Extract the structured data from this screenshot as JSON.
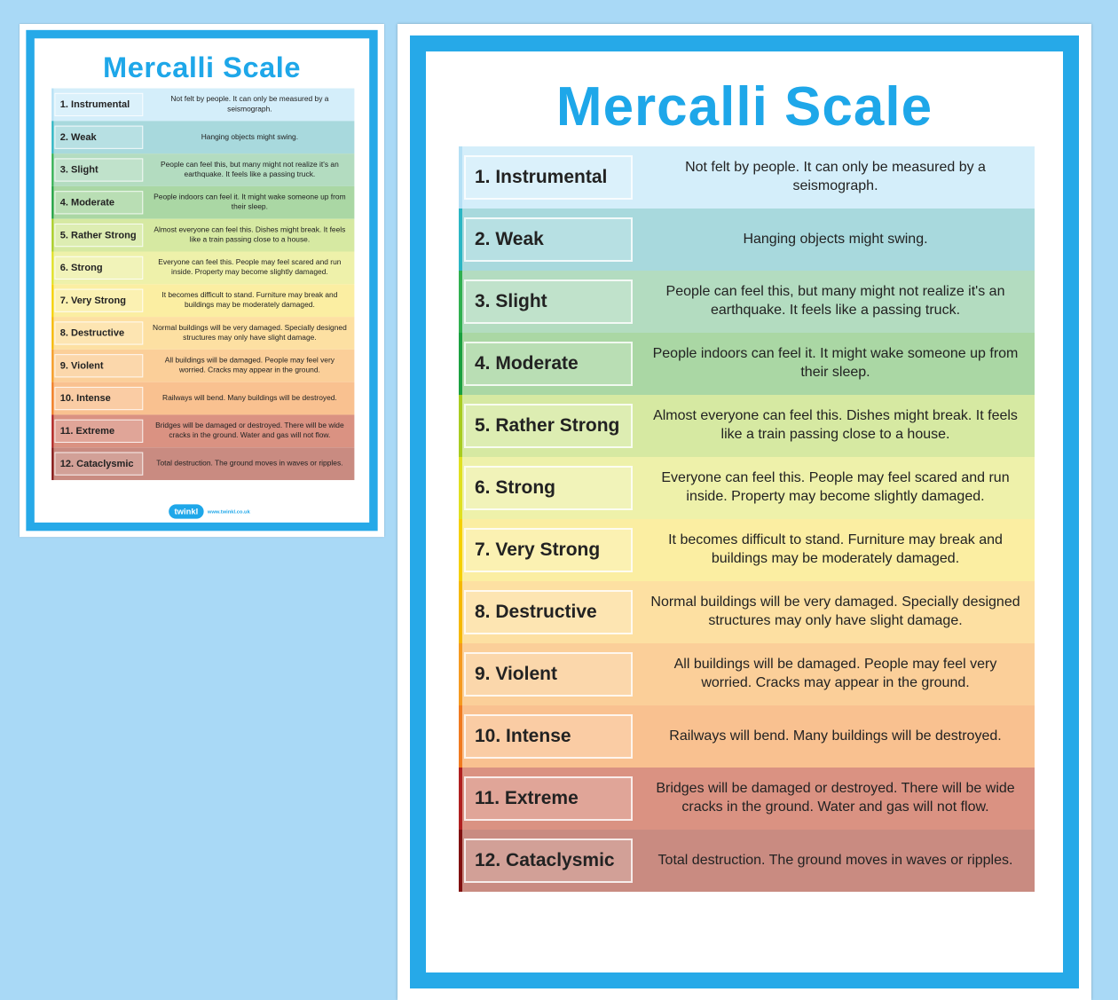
{
  "title": "Mercalli Scale",
  "logo": {
    "brand": "twinkl",
    "url": "www.twinkl.co.uk"
  },
  "rows": [
    {
      "label": "1. Instrumental",
      "desc": "Not felt by people. It can only be measured by a seismograph.",
      "color": "#d4eefa",
      "strip": "#b5e0f5"
    },
    {
      "label": "2. Weak",
      "desc": "Hanging objects might swing.",
      "color": "#a8d9dd",
      "strip": "#2bb6c4"
    },
    {
      "label": "3. Slight",
      "desc": "People can feel this, but many might not realize it's an earthquake. It feels like a passing truck.",
      "color": "#b3dcc0",
      "strip": "#30b050"
    },
    {
      "label": "4. Moderate",
      "desc": "People indoors can feel it. It might wake someone up from their sleep.",
      "color": "#aad7a4",
      "strip": "#1aa040"
    },
    {
      "label": "5. Rather Strong",
      "desc": "Almost everyone can feel this. Dishes might break. It feels like a train passing close to a house.",
      "color": "#d6e9a2",
      "strip": "#a8cc20"
    },
    {
      "label": "6. Strong",
      "desc": "Everyone can feel this. People may feel scared and run inside. Property may become slightly damaged.",
      "color": "#eef1aa",
      "strip": "#e0e020"
    },
    {
      "label": "7. Very Strong",
      "desc": "It becomes difficult to stand. Furniture may break and buildings may be moderately damaged.",
      "color": "#fbeea2",
      "strip": "#f5d000"
    },
    {
      "label": "8. Destructive",
      "desc": "Normal buildings will be very damaged. Specially designed structures may only have slight damage.",
      "color": "#fde0a2",
      "strip": "#f5b800"
    },
    {
      "label": "9. Violent",
      "desc": "All buildings will be damaged. People may feel very worried. Cracks may appear in the ground.",
      "color": "#fbcf99",
      "strip": "#f59a20"
    },
    {
      "label": "10. Intense",
      "desc": "Railways will bend. Many buildings will be destroyed.",
      "color": "#f9c190",
      "strip": "#f07a20"
    },
    {
      "label": "11. Extreme",
      "desc": "Bridges will be damaged or destroyed. There will be wide cracks in the ground. Water and gas will not flow.",
      "color": "#da9282",
      "strip": "#b02020"
    },
    {
      "label": "12. Cataclysmic",
      "desc": "Total destruction. The ground moves in waves or ripples.",
      "color": "#c98b81",
      "strip": "#801010"
    }
  ]
}
